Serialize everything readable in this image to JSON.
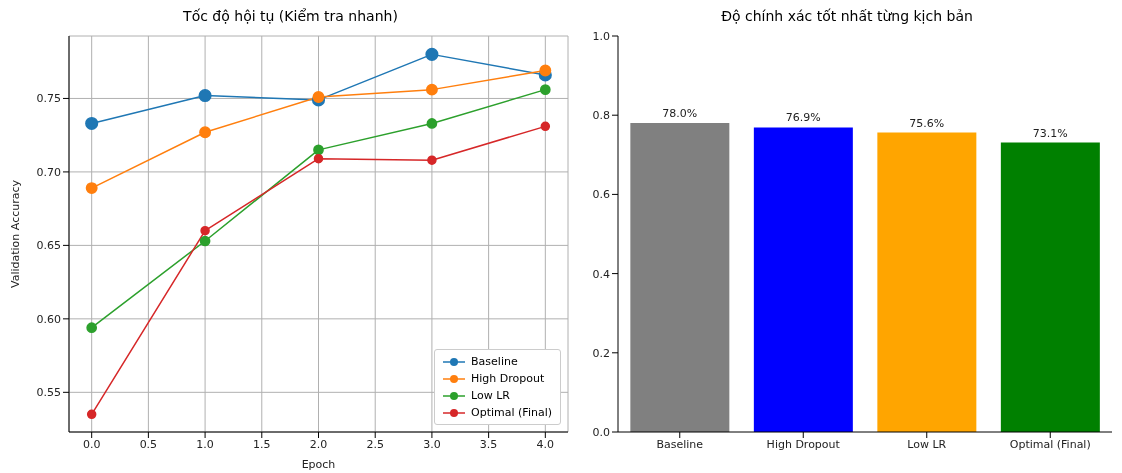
{
  "chart_data": [
    {
      "type": "line",
      "title": "Tốc độ hội tụ (Kiểm tra nhanh)",
      "xlabel": "Epoch",
      "ylabel": "Validation Accuracy",
      "x": [
        0,
        1,
        2,
        3,
        4
      ],
      "series": [
        {
          "name": "Baseline",
          "color": "#1f77b4",
          "values": [
            0.733,
            0.752,
            0.749,
            0.78,
            0.766
          ]
        },
        {
          "name": "High Dropout",
          "color": "#ff7f0e",
          "values": [
            0.689,
            0.727,
            0.751,
            0.756,
            0.769
          ]
        },
        {
          "name": "Low LR",
          "color": "#2ca02c",
          "values": [
            0.594,
            0.653,
            0.715,
            0.733,
            0.756
          ]
        },
        {
          "name": "Optimal (Final)",
          "color": "#d62728",
          "values": [
            0.535,
            0.66,
            0.709,
            0.708,
            0.731
          ]
        }
      ],
      "xlim": [
        -0.2,
        4.2
      ],
      "xticks": [
        {
          "value": 0,
          "label": "0.0"
        },
        {
          "value": 0.5,
          "label": "0.5"
        },
        {
          "value": 1,
          "label": "1.0"
        },
        {
          "value": 1.5,
          "label": "1.5"
        },
        {
          "value": 2,
          "label": "2.0"
        },
        {
          "value": 2.5,
          "label": "2.5"
        },
        {
          "value": 3,
          "label": "3.0"
        },
        {
          "value": 3.5,
          "label": "3.5"
        },
        {
          "value": 4,
          "label": "4.0"
        }
      ],
      "ylim": [
        0.523,
        0.7925
      ],
      "yticks": [
        {
          "value": 0.55,
          "label": "0.55"
        },
        {
          "value": 0.6,
          "label": "0.60"
        },
        {
          "value": 0.65,
          "label": "0.65"
        },
        {
          "value": 0.7,
          "label": "0.70"
        },
        {
          "value": 0.75,
          "label": "0.75"
        }
      ],
      "grid": true,
      "legend": "bottom right",
      "marker": "circle",
      "line_style": "solid"
    },
    {
      "type": "bar",
      "title": "Độ chính xác tốt nhất từng kịch bản",
      "categories": [
        "Baseline",
        "High Dropout",
        "Low LR",
        "Optimal (Final)"
      ],
      "values": [
        0.78,
        0.769,
        0.756,
        0.731
      ],
      "colors": [
        "#808080",
        "#0000ff",
        "#ffa500",
        "#008000"
      ],
      "value_labels": [
        "78.0%",
        "76.9%",
        "75.6%",
        "73.1%"
      ],
      "ylim": [
        0,
        1
      ],
      "yticks": [
        {
          "value": 0,
          "label": "0.0"
        },
        {
          "value": 0.2,
          "label": "0.2"
        },
        {
          "value": 0.4,
          "label": "0.4"
        },
        {
          "value": 0.6,
          "label": "0.6"
        },
        {
          "value": 0.8,
          "label": "0.8"
        },
        {
          "value": 1,
          "label": "1.0"
        }
      ],
      "grid": false
    }
  ]
}
